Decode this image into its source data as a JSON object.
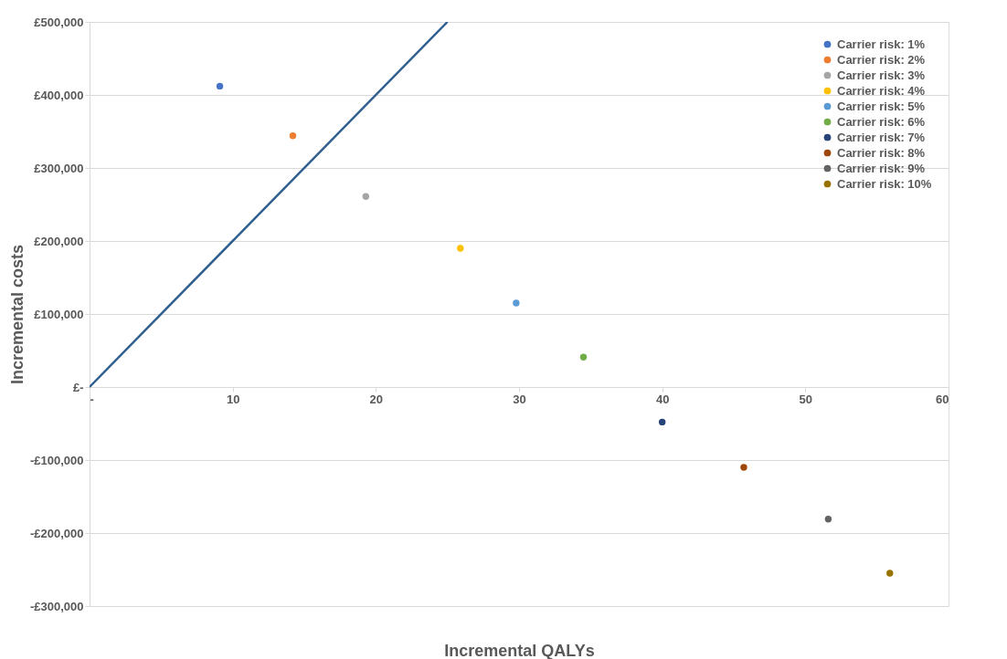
{
  "chart_data": {
    "type": "scatter",
    "xlabel": "Incremental QALYs",
    "ylabel": "Incremental costs",
    "xlim": [
      0,
      60
    ],
    "xticks": [
      {
        "value": 0,
        "label": "-"
      },
      10,
      20,
      30,
      40,
      50,
      60
    ],
    "ylim": [
      -300000,
      500000
    ],
    "yticks": [
      {
        "value": -300000,
        "label": "-£300,000"
      },
      {
        "value": -200000,
        "label": "-£200,000"
      },
      {
        "value": -100000,
        "label": "-£100,000"
      },
      {
        "value": 0,
        "label": "£-"
      },
      {
        "value": 100000,
        "label": "£100,000"
      },
      {
        "value": 200000,
        "label": "£200,000"
      },
      {
        "value": 300000,
        "label": "£300,000"
      },
      {
        "value": 400000,
        "label": "£400,000"
      },
      {
        "value": 500000,
        "label": "£500,000"
      }
    ],
    "grid": "y",
    "legend": "top right",
    "marker": "circle",
    "series": [
      {
        "type": "line",
        "color": "#2e5f8f",
        "x": [
          0,
          25
        ],
        "values": [
          0,
          500000
        ],
        "line_style": "solid",
        "marker": "none"
      },
      {
        "name": "Carrier risk: 1%",
        "color": "#4472c4",
        "x": [
          9.1
        ],
        "values": [
          412000
        ]
      },
      {
        "name": "Carrier risk: 2%",
        "color": "#ed7d31",
        "x": [
          14.2
        ],
        "values": [
          344000
        ]
      },
      {
        "name": "Carrier risk: 3%",
        "color": "#a5a5a5",
        "x": [
          19.3
        ],
        "values": [
          261000
        ]
      },
      {
        "name": "Carrier risk: 4%",
        "color": "#ffc000",
        "x": [
          25.9
        ],
        "values": [
          190000
        ]
      },
      {
        "name": "Carrier risk: 5%",
        "color": "#5b9bd5",
        "x": [
          29.8
        ],
        "values": [
          115000
        ]
      },
      {
        "name": "Carrier risk: 6%",
        "color": "#70ad47",
        "x": [
          34.5
        ],
        "values": [
          41000
        ]
      },
      {
        "name": "Carrier risk: 7%",
        "color": "#264478",
        "x": [
          40.0
        ],
        "values": [
          -48000
        ]
      },
      {
        "name": "Carrier risk: 8%",
        "color": "#9e480e",
        "x": [
          45.7
        ],
        "values": [
          -110000
        ]
      },
      {
        "name": "Carrier risk: 9%",
        "color": "#636363",
        "x": [
          51.6
        ],
        "values": [
          -181000
        ]
      },
      {
        "name": "Carrier risk: 10%",
        "color": "#997300",
        "x": [
          55.9
        ],
        "values": [
          -255000
        ]
      }
    ]
  }
}
